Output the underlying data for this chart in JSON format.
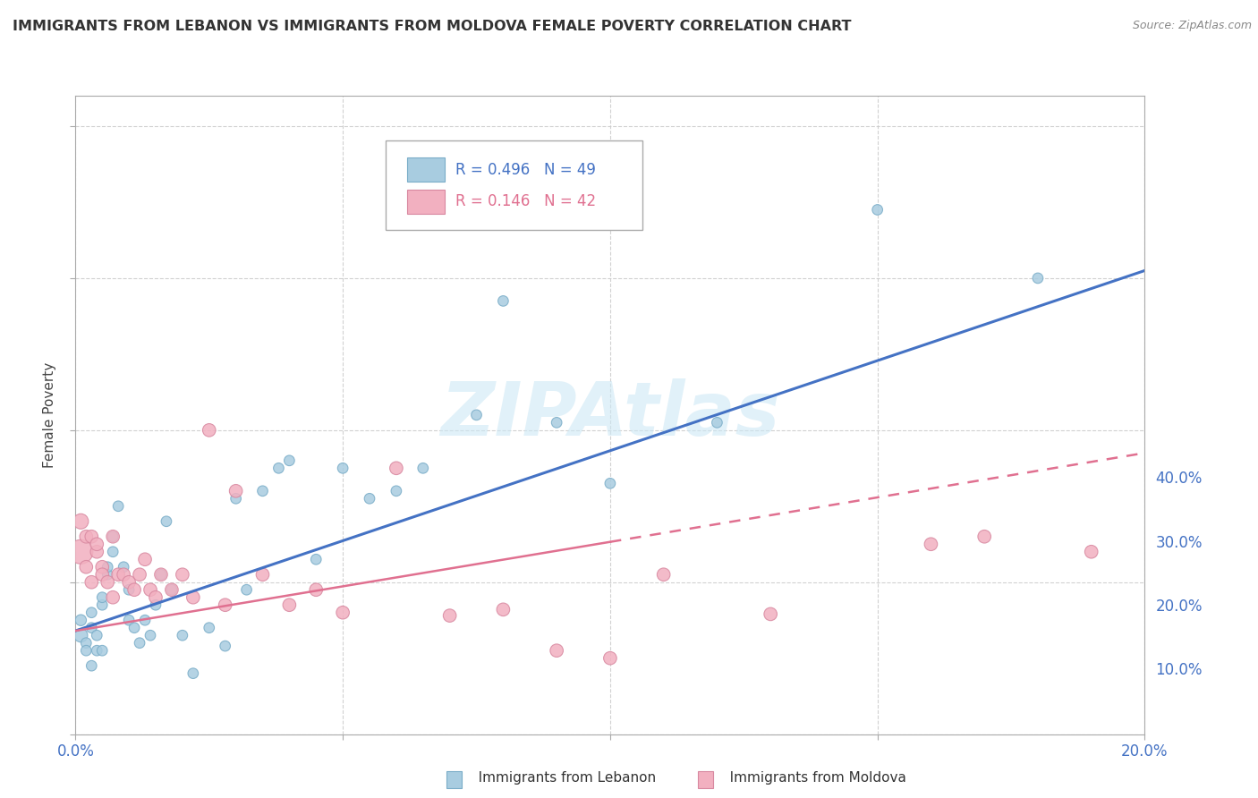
{
  "title": "IMMIGRANTS FROM LEBANON VS IMMIGRANTS FROM MOLDOVA FEMALE POVERTY CORRELATION CHART",
  "source": "Source: ZipAtlas.com",
  "ylabel": "Female Poverty",
  "xlim": [
    0.0,
    0.2
  ],
  "ylim": [
    0.0,
    0.42
  ],
  "legend_r1": "R = 0.496",
  "legend_n1": "N = 49",
  "legend_r2": "R = 0.146",
  "legend_n2": "N = 42",
  "lebanon_color": "#a8cce0",
  "moldova_color": "#f2b0c0",
  "regression_lebanon_color": "#4472c4",
  "regression_moldova_color": "#e07090",
  "watermark": "ZIPAtlas",
  "lebanon_scatter": {
    "x": [
      0.001,
      0.001,
      0.002,
      0.002,
      0.003,
      0.003,
      0.003,
      0.004,
      0.004,
      0.005,
      0.005,
      0.005,
      0.006,
      0.006,
      0.007,
      0.007,
      0.008,
      0.009,
      0.01,
      0.01,
      0.011,
      0.012,
      0.013,
      0.014,
      0.015,
      0.016,
      0.017,
      0.018,
      0.02,
      0.022,
      0.025,
      0.028,
      0.03,
      0.032,
      0.035,
      0.038,
      0.04,
      0.045,
      0.05,
      0.055,
      0.06,
      0.065,
      0.075,
      0.08,
      0.09,
      0.1,
      0.12,
      0.15,
      0.18
    ],
    "y": [
      0.065,
      0.075,
      0.06,
      0.055,
      0.07,
      0.08,
      0.045,
      0.065,
      0.055,
      0.085,
      0.09,
      0.055,
      0.105,
      0.11,
      0.12,
      0.13,
      0.15,
      0.11,
      0.095,
      0.075,
      0.07,
      0.06,
      0.075,
      0.065,
      0.085,
      0.105,
      0.14,
      0.095,
      0.065,
      0.04,
      0.07,
      0.058,
      0.155,
      0.095,
      0.16,
      0.175,
      0.18,
      0.115,
      0.175,
      0.155,
      0.16,
      0.175,
      0.21,
      0.285,
      0.205,
      0.165,
      0.205,
      0.345,
      0.3
    ],
    "sizes": [
      120,
      80,
      70,
      70,
      70,
      70,
      70,
      70,
      70,
      70,
      70,
      70,
      70,
      70,
      70,
      70,
      70,
      70,
      70,
      70,
      70,
      70,
      70,
      70,
      70,
      70,
      70,
      70,
      70,
      70,
      70,
      70,
      70,
      70,
      70,
      70,
      70,
      70,
      70,
      70,
      70,
      70,
      70,
      70,
      70,
      70,
      70,
      70,
      70
    ]
  },
  "moldova_scatter": {
    "x": [
      0.001,
      0.001,
      0.002,
      0.002,
      0.003,
      0.003,
      0.004,
      0.004,
      0.005,
      0.005,
      0.006,
      0.007,
      0.007,
      0.008,
      0.009,
      0.01,
      0.011,
      0.012,
      0.013,
      0.014,
      0.015,
      0.016,
      0.018,
      0.02,
      0.022,
      0.025,
      0.028,
      0.03,
      0.035,
      0.04,
      0.045,
      0.05,
      0.06,
      0.07,
      0.08,
      0.09,
      0.1,
      0.11,
      0.13,
      0.16,
      0.17,
      0.19
    ],
    "y": [
      0.12,
      0.14,
      0.13,
      0.11,
      0.13,
      0.1,
      0.12,
      0.125,
      0.11,
      0.105,
      0.1,
      0.09,
      0.13,
      0.105,
      0.105,
      0.1,
      0.095,
      0.105,
      0.115,
      0.095,
      0.09,
      0.105,
      0.095,
      0.105,
      0.09,
      0.2,
      0.085,
      0.16,
      0.105,
      0.085,
      0.095,
      0.08,
      0.175,
      0.078,
      0.082,
      0.055,
      0.05,
      0.105,
      0.079,
      0.125,
      0.13,
      0.12
    ],
    "sizes": [
      380,
      150,
      110,
      110,
      110,
      110,
      110,
      110,
      110,
      110,
      110,
      110,
      110,
      110,
      110,
      110,
      110,
      110,
      110,
      110,
      110,
      110,
      110,
      110,
      110,
      110,
      110,
      110,
      110,
      110,
      110,
      110,
      110,
      110,
      110,
      110,
      110,
      110,
      110,
      110,
      110,
      110
    ]
  },
  "leb_line": {
    "x0": 0.0,
    "y0": 0.068,
    "x1": 0.2,
    "y1": 0.305
  },
  "mol_line": {
    "x0": 0.0,
    "y0": 0.068,
    "x1": 0.2,
    "y1": 0.185
  }
}
